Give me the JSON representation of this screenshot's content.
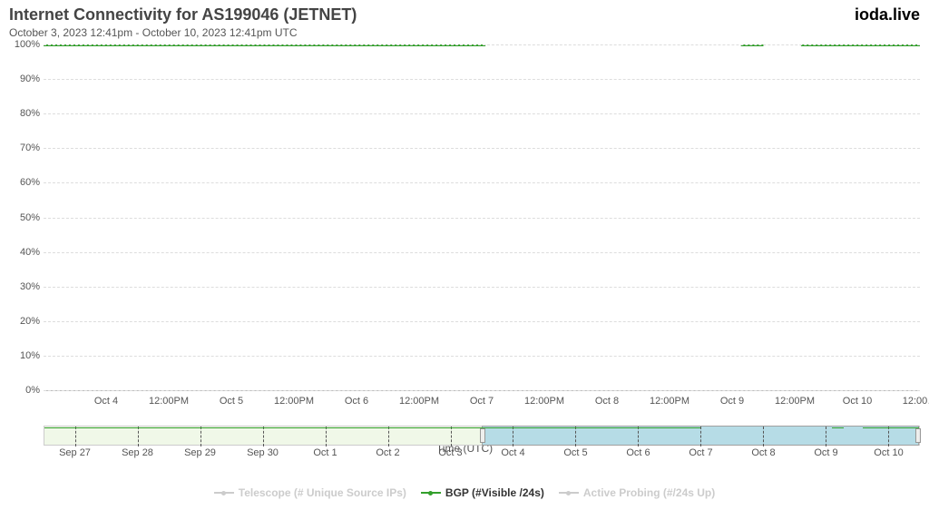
{
  "header": {
    "title": "Internet Connectivity for AS199046 (JETNET)",
    "subtitle": "October 3, 2023 12:41pm - October 10, 2023 12:41pm UTC",
    "brand": "ioda.live"
  },
  "chart": {
    "type": "line",
    "y_axis": {
      "min": 0,
      "max": 100,
      "step": 10,
      "unit": "%",
      "ticks": [
        0,
        10,
        20,
        30,
        40,
        50,
        60,
        70,
        80,
        90,
        100
      ]
    },
    "x_axis": {
      "title": "Time (UTC)",
      "range_days": 7,
      "ticks": [
        "Oct 4",
        "12:00PM",
        "Oct 5",
        "12:00PM",
        "Oct 6",
        "12:00PM",
        "Oct 7",
        "12:00PM",
        "Oct 8",
        "12:00PM",
        "Oct 9",
        "12:00PM",
        "Oct 10",
        "12:00…"
      ],
      "tick_positions_days": [
        0.5,
        1.0,
        1.5,
        2.0,
        2.5,
        3.0,
        3.5,
        4.0,
        4.5,
        5.0,
        5.5,
        6.0,
        6.5,
        7.0
      ]
    },
    "colors": {
      "series_bgp": "#33a02c",
      "grid": "#dddddd",
      "axis": "#bbbbbb",
      "text": "#555555",
      "background": "#ffffff"
    },
    "line_width": 1.5,
    "series": {
      "bgp": [
        {
          "start_day": 0.0,
          "end_day": 3.53,
          "value": 100
        },
        {
          "start_day": 5.57,
          "end_day": 5.75,
          "value": 100
        },
        {
          "start_day": 6.05,
          "end_day": 7.0,
          "value": 100
        }
      ]
    }
  },
  "navigator": {
    "range_days": 14,
    "ticks": [
      "Sep 27",
      "Sep 28",
      "Sep 29",
      "Sep 30",
      "Oct 1",
      "Oct 2",
      "Oct 3",
      "Oct 4",
      "Oct 5",
      "Oct 6",
      "Oct 7",
      "Oct 8",
      "Oct 9",
      "Oct 10"
    ],
    "tick_positions_days": [
      0.5,
      1.5,
      2.5,
      3.5,
      4.5,
      5.5,
      6.5,
      7.5,
      8.5,
      9.5,
      10.5,
      11.5,
      12.5,
      13.5
    ],
    "selection": {
      "start_day": 7.0,
      "end_day": 14.0
    },
    "colors": {
      "track_bg": "#f0f8e8",
      "selection_bg": "#add8e6",
      "border": "#cccccc",
      "tick": "#555555",
      "series": "#33a02c"
    },
    "series_line": [
      {
        "start_day": 0.0,
        "end_day": 10.5
      },
      {
        "start_day": 12.6,
        "end_day": 12.8
      },
      {
        "start_day": 13.1,
        "end_day": 14.0
      }
    ]
  },
  "legend": {
    "items": [
      {
        "label": "Telescope (# Unique Source IPs)",
        "color": "#cccccc",
        "active": false
      },
      {
        "label": "BGP (#Visible /24s)",
        "color": "#33a02c",
        "active": true
      },
      {
        "label": "Active Probing (#/24s Up)",
        "color": "#cccccc",
        "active": false
      }
    ]
  }
}
